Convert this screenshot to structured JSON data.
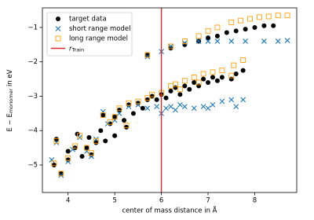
{
  "chart_data": {
    "type": "scatter",
    "xlabel": "center of mass distance in Å",
    "ylabel": "E − E",
    "ylabel_subscript": "monomer",
    "ylabel_suffix": " in eV",
    "xlim": [
      3.45,
      8.9
    ],
    "ylim": [
      -5.8,
      -0.43
    ],
    "xticks": [
      4,
      5,
      6,
      7,
      8
    ],
    "yticks": [
      {
        "value": -5,
        "label": "−5"
      },
      {
        "value": -4,
        "label": "−4"
      },
      {
        "value": -3,
        "label": "−3"
      },
      {
        "value": -2,
        "label": "−2"
      },
      {
        "value": -1,
        "label": "−1"
      }
    ],
    "legend": "upper left",
    "vline": {
      "x": 6,
      "color": "#e3282a",
      "label": "r",
      "label_subscript": "Train"
    },
    "series": [
      {
        "name": "target data",
        "color": "#000000",
        "marker": "circle",
        "x": [
          3.7,
          3.75,
          3.85,
          4.0,
          4.0,
          4.15,
          4.2,
          4.3,
          4.4,
          4.45,
          4.5,
          4.6,
          4.7,
          4.75,
          4.8,
          4.9,
          5.0,
          5.0,
          5.1,
          5.2,
          5.25,
          5.3,
          5.4,
          5.5,
          5.6,
          5.7,
          5.8,
          5.9,
          6.0,
          6.1,
          6.2,
          6.3,
          6.4,
          6.5,
          6.6,
          6.7,
          6.8,
          6.9,
          7.0,
          7.1,
          7.2,
          7.3,
          7.5,
          7.6,
          7.75,
          5.7,
          6.2,
          6.5,
          6.8,
          7.0,
          7.2,
          7.4,
          7.6,
          7.8,
          8.0,
          8.2,
          8.4
        ],
        "y": [
          -5.0,
          -4.25,
          -5.25,
          -4.85,
          -4.6,
          -4.5,
          -4.1,
          -4.75,
          -4.5,
          -4.2,
          -4.7,
          -4.35,
          -4.0,
          -3.55,
          -4.3,
          -3.8,
          -3.6,
          -4.15,
          -3.4,
          -3.7,
          -3.9,
          -3.25,
          -3.5,
          -3.2,
          -3.35,
          -3.1,
          -3.0,
          -3.1,
          -2.95,
          -3.05,
          -2.85,
          -2.75,
          -2.95,
          -2.7,
          -2.8,
          -2.6,
          -2.7,
          -2.5,
          -2.6,
          -2.45,
          -2.55,
          -2.45,
          -2.5,
          -2.35,
          -2.25,
          -1.8,
          -1.6,
          -1.5,
          -1.4,
          -1.3,
          -1.25,
          -1.15,
          -1.1,
          -1.05,
          -1.0,
          -0.95,
          -0.95
        ]
      },
      {
        "name": "short range model",
        "color": "#1f77b4",
        "marker": "x",
        "x": [
          3.65,
          3.75,
          3.85,
          4.0,
          4.1,
          4.25,
          4.4,
          4.5,
          4.6,
          4.75,
          4.85,
          5.0,
          5.1,
          5.3,
          5.5,
          5.7,
          5.9,
          6.0,
          6.1,
          6.2,
          6.3,
          6.5,
          6.7,
          6.9,
          7.1,
          7.3,
          7.5,
          7.75,
          6.4,
          7.0,
          7.6,
          5.7,
          6.0,
          6.2,
          6.5,
          6.8,
          7.0,
          7.2,
          7.5,
          7.8,
          8.2,
          8.5,
          8.7
        ],
        "y": [
          -4.85,
          -4.35,
          -5.3,
          -4.9,
          -4.55,
          -4.2,
          -4.6,
          -4.75,
          -4.25,
          -3.45,
          -3.8,
          -3.7,
          -3.5,
          -3.3,
          -3.25,
          -3.35,
          -3.3,
          -3.5,
          -3.35,
          -3.3,
          -3.4,
          -3.3,
          -3.35,
          -3.3,
          -3.25,
          -3.15,
          -3.1,
          -3.1,
          -3.25,
          -3.35,
          -3.3,
          -1.85,
          -1.7,
          -1.55,
          -1.45,
          -1.4,
          -1.4,
          -1.4,
          -1.4,
          -1.4,
          -1.4,
          -1.4,
          -1.38
        ]
      },
      {
        "name": "long range model",
        "color": "#ff9f0e",
        "marker": "square",
        "x": [
          3.7,
          3.75,
          3.85,
          4.0,
          4.15,
          4.25,
          4.4,
          4.5,
          4.6,
          4.75,
          4.9,
          5.0,
          5.1,
          5.25,
          5.3,
          5.5,
          5.7,
          5.8,
          6.0,
          6.2,
          6.3,
          6.5,
          6.7,
          6.9,
          7.1,
          7.3,
          7.55,
          7.75,
          6.4,
          6.8,
          7.5,
          5.7,
          6.2,
          6.5,
          6.8,
          7.0,
          7.2,
          7.5,
          7.7,
          7.9,
          8.1,
          8.3,
          8.5,
          8.7
        ],
        "y": [
          -4.95,
          -4.3,
          -5.25,
          -4.8,
          -4.45,
          -4.15,
          -4.5,
          -4.65,
          -4.3,
          -3.55,
          -3.75,
          -3.6,
          -3.35,
          -3.85,
          -3.2,
          -3.15,
          -3.05,
          -2.95,
          -2.9,
          -2.7,
          -2.65,
          -2.55,
          -2.45,
          -2.35,
          -2.3,
          -2.25,
          -2.1,
          -1.95,
          -2.8,
          -2.6,
          -2.4,
          -1.8,
          -1.55,
          -1.4,
          -1.25,
          -1.1,
          -1.0,
          -0.85,
          -0.8,
          -0.75,
          -0.7,
          -0.68,
          -0.65,
          -0.65
        ]
      }
    ]
  }
}
